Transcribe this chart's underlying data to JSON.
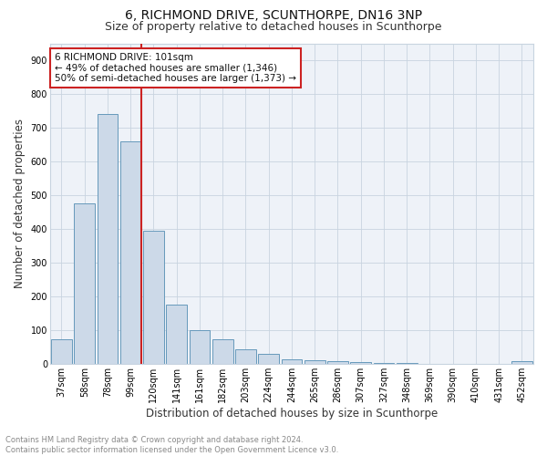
{
  "title": "6, RICHMOND DRIVE, SCUNTHORPE, DN16 3NP",
  "subtitle": "Size of property relative to detached houses in Scunthorpe",
  "xlabel": "Distribution of detached houses by size in Scunthorpe",
  "ylabel": "Number of detached properties",
  "categories": [
    "37sqm",
    "58sqm",
    "78sqm",
    "99sqm",
    "120sqm",
    "141sqm",
    "161sqm",
    "182sqm",
    "203sqm",
    "224sqm",
    "244sqm",
    "265sqm",
    "286sqm",
    "307sqm",
    "327sqm",
    "348sqm",
    "369sqm",
    "390sqm",
    "410sqm",
    "431sqm",
    "452sqm"
  ],
  "values": [
    75,
    475,
    740,
    660,
    395,
    175,
    100,
    75,
    45,
    30,
    15,
    12,
    10,
    5,
    4,
    3,
    2,
    2,
    1,
    1,
    8
  ],
  "bar_color": "#ccd9e8",
  "bar_edge_color": "#6699bb",
  "vline_index": 3,
  "vline_color": "#cc2222",
  "annotation_text": "6 RICHMOND DRIVE: 101sqm\n← 49% of detached houses are smaller (1,346)\n50% of semi-detached houses are larger (1,373) →",
  "annotation_box_facecolor": "#ffffff",
  "annotation_box_edgecolor": "#cc2222",
  "ylim": [
    0,
    950
  ],
  "yticks": [
    0,
    100,
    200,
    300,
    400,
    500,
    600,
    700,
    800,
    900
  ],
  "footer_text": "Contains HM Land Registry data © Crown copyright and database right 2024.\nContains public sector information licensed under the Open Government Licence v3.0.",
  "plot_bg_color": "#eef2f8",
  "title_fontsize": 10,
  "subtitle_fontsize": 9,
  "tick_fontsize": 7,
  "ylabel_fontsize": 8.5,
  "xlabel_fontsize": 8.5,
  "annotation_fontsize": 7.5,
  "footer_fontsize": 6,
  "grid_color": "#c8d4e0"
}
